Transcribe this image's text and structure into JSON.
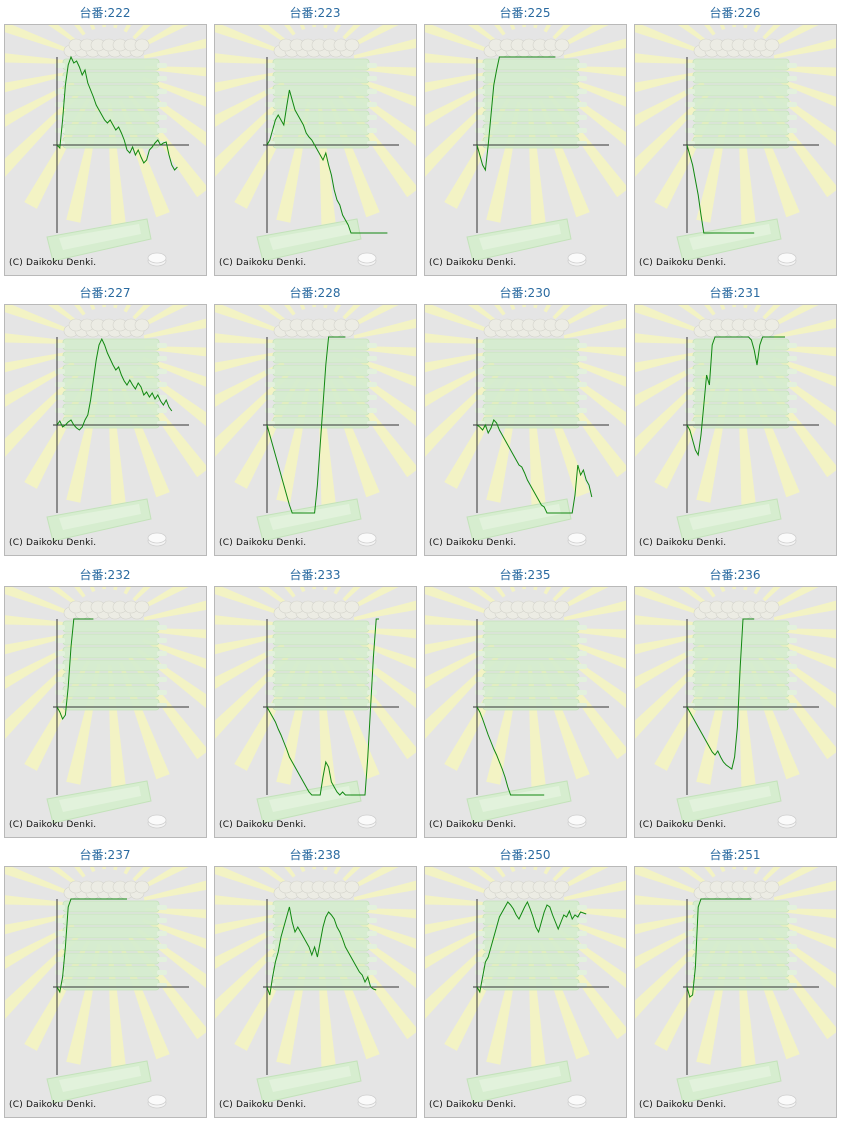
{
  "copyright": "(C) Daikoku Denki.",
  "line_color": "#118811",
  "axis_color": "#333333",
  "chart_data": [
    {
      "type": "line",
      "title": "台番:222",
      "values": [
        0,
        -3,
        25,
        60,
        80,
        88,
        82,
        84,
        78,
        70,
        75,
        62,
        55,
        48,
        40,
        35,
        30,
        25,
        22,
        25,
        20,
        15,
        18,
        12,
        5,
        -5,
        -8,
        -2,
        -10,
        -5,
        -12,
        -18,
        -15,
        -5,
        -2,
        2,
        5,
        0,
        2,
        3,
        -10,
        -20,
        -25,
        -22
      ]
    },
    {
      "type": "line",
      "title": "台番:223",
      "values": [
        0,
        5,
        15,
        25,
        30,
        25,
        20,
        38,
        55,
        45,
        35,
        30,
        25,
        20,
        12,
        8,
        5,
        0,
        -5,
        -10,
        -15,
        -8,
        -20,
        -30,
        -45,
        -55,
        -60,
        -70,
        -75,
        -80,
        -95,
        -100,
        -110,
        -120,
        -130,
        -128,
        -135,
        -142,
        -155,
        -160,
        -170,
        -165,
        -150,
        -130
      ]
    },
    {
      "type": "line",
      "title": "台番:225",
      "values": [
        0,
        -10,
        -20,
        -25,
        0,
        30,
        60,
        75,
        150,
        200,
        260,
        300,
        330,
        350,
        370,
        380,
        390,
        400,
        410,
        420,
        430,
        425,
        440,
        450,
        460,
        470,
        480,
        490,
        500
      ]
    },
    {
      "type": "line",
      "title": "台番:226",
      "values": [
        0,
        -10,
        -20,
        -35,
        -50,
        -70,
        -90,
        -110,
        -130,
        -150,
        -175,
        -200,
        -220,
        -240,
        -260,
        -280,
        -300,
        -320,
        -330,
        -345,
        -360,
        -375,
        -385,
        -380,
        -375
      ]
    },
    {
      "type": "line",
      "title": "台番:227",
      "values": [
        0,
        4,
        -2,
        0,
        3,
        5,
        0,
        -3,
        -5,
        -2,
        5,
        10,
        25,
        45,
        65,
        80,
        86,
        80,
        72,
        66,
        60,
        55,
        58,
        50,
        44,
        40,
        45,
        40,
        36,
        42,
        38,
        30,
        33,
        28,
        32,
        26,
        30,
        24,
        20,
        25,
        18,
        14
      ]
    },
    {
      "type": "line",
      "title": "台番:228",
      "values": [
        0,
        -10,
        -20,
        -30,
        -40,
        -50,
        -60,
        -70,
        -80,
        -90,
        -100,
        -105,
        -110,
        -115,
        -120,
        -118,
        -110,
        -90,
        -60,
        -20,
        20,
        60,
        100,
        140,
        180,
        210,
        240,
        270,
        300
      ]
    },
    {
      "type": "line",
      "title": "台番:230",
      "values": [
        0,
        -2,
        -5,
        0,
        -8,
        -3,
        5,
        2,
        -5,
        -10,
        -15,
        -20,
        -25,
        -30,
        -35,
        -40,
        -42,
        -48,
        -55,
        -60,
        -65,
        -70,
        -75,
        -80,
        -82,
        -90,
        -95,
        -100,
        -105,
        -110,
        -115,
        -108,
        -118,
        -122,
        -112,
        -70,
        -40,
        -50,
        -45,
        -55,
        -60,
        -72
      ]
    },
    {
      "type": "line",
      "title": "台番:231",
      "values": [
        0,
        -5,
        -15,
        -25,
        -30,
        -10,
        20,
        50,
        40,
        80,
        120,
        140,
        135,
        125,
        130,
        135,
        140,
        135,
        120,
        110,
        115,
        105,
        95,
        85,
        75,
        60,
        80,
        100,
        110,
        100,
        95,
        110,
        130,
        125,
        150,
        170
      ]
    },
    {
      "type": "line",
      "title": "台番:232",
      "values": [
        0,
        -5,
        -12,
        -8,
        20,
        60,
        100,
        140,
        180,
        220,
        250,
        280,
        310,
        340
      ]
    },
    {
      "type": "line",
      "title": "台番:233",
      "values": [
        0,
        -5,
        -10,
        -15,
        -22,
        -28,
        -35,
        -42,
        -50,
        -55,
        -60,
        -65,
        -70,
        -75,
        -80,
        -85,
        -90,
        -95,
        -100,
        -88,
        -70,
        -55,
        -60,
        -75,
        -80,
        -85,
        -90,
        -85,
        -92,
        -88,
        -94,
        -96,
        -90,
        -100,
        -110,
        -115,
        -50,
        0,
        50,
        100,
        150
      ]
    },
    {
      "type": "line",
      "title": "台番:235",
      "values": [
        0,
        -5,
        -12,
        -20,
        -28,
        -35,
        -42,
        -48,
        -55,
        -62,
        -70,
        -80,
        -88,
        -95,
        -102,
        -110,
        -115,
        -120,
        -125,
        -128,
        -120,
        -132,
        -128,
        -125,
        -135
      ]
    },
    {
      "type": "line",
      "title": "台番:236",
      "values": [
        0,
        -5,
        -10,
        -15,
        -20,
        -25,
        -30,
        -35,
        -40,
        -45,
        -48,
        -44,
        -50,
        -55,
        -58,
        -60,
        -62,
        -50,
        -20,
        40,
        100,
        170,
        240,
        310,
        380
      ]
    },
    {
      "type": "line",
      "title": "台番:237",
      "values": [
        0,
        -5,
        10,
        40,
        80,
        120,
        110,
        140,
        170,
        200,
        240,
        280,
        320,
        360,
        400,
        440,
        470,
        500,
        520,
        540,
        560,
        520,
        490,
        470,
        450,
        430
      ]
    },
    {
      "type": "line",
      "title": "台番:238",
      "values": [
        0,
        -8,
        10,
        25,
        35,
        50,
        60,
        70,
        80,
        65,
        55,
        60,
        55,
        50,
        45,
        40,
        32,
        40,
        30,
        45,
        60,
        70,
        75,
        72,
        68,
        60,
        55,
        48,
        40,
        35,
        30,
        25,
        20,
        15,
        12,
        5,
        10,
        0,
        -2,
        -3
      ]
    },
    {
      "type": "line",
      "title": "台番:250",
      "values": [
        0,
        -5,
        10,
        25,
        30,
        40,
        50,
        60,
        70,
        75,
        80,
        85,
        82,
        78,
        72,
        68,
        74,
        80,
        85,
        78,
        70,
        60,
        55,
        65,
        75,
        82,
        80,
        72,
        65,
        58,
        65,
        72,
        70,
        76,
        68,
        72,
        70,
        75,
        74,
        73
      ]
    },
    {
      "type": "line",
      "title": "台番:251",
      "values": [
        0,
        -10,
        -8,
        20,
        80,
        150,
        220,
        300,
        380,
        460,
        520,
        580,
        620,
        660,
        700,
        720,
        740,
        760,
        780,
        800,
        820,
        800,
        790,
        810
      ]
    }
  ]
}
